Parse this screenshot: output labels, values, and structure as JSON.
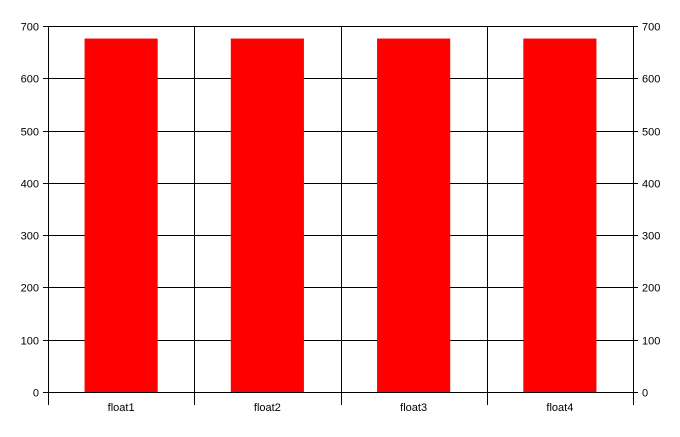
{
  "chart_data": {
    "type": "bar",
    "categories": [
      "float1",
      "float2",
      "float3",
      "float4"
    ],
    "values": [
      676,
      676,
      676,
      676
    ],
    "title": "",
    "xlabel": "",
    "ylabel": "",
    "ylim": [
      0,
      700
    ],
    "yticks": [
      0,
      100,
      200,
      300,
      400,
      500,
      600,
      700
    ],
    "secondary_y_axis": true,
    "grid": true,
    "bar_color": "#ff0000"
  }
}
